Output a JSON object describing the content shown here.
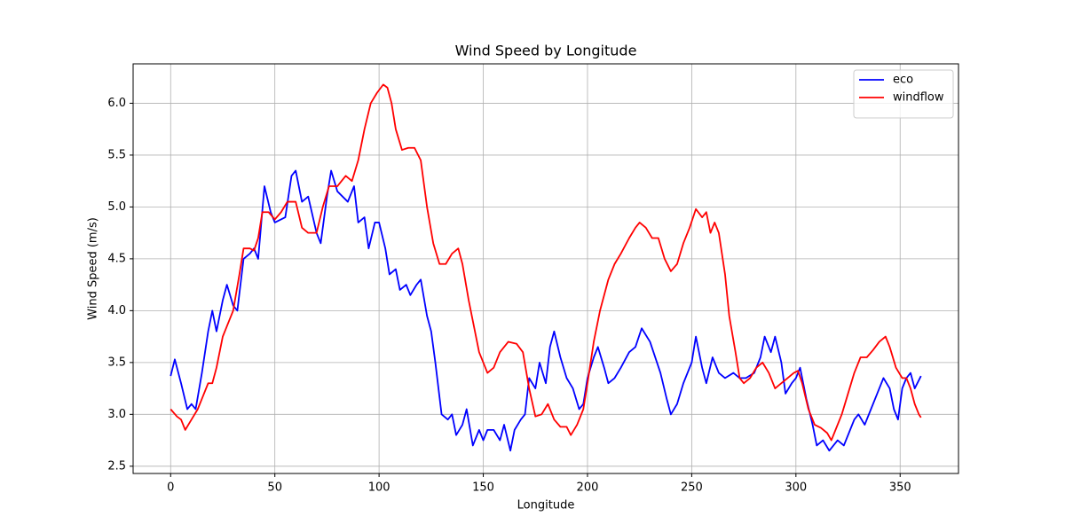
{
  "chart_data": {
    "type": "line",
    "title": "Wind Speed by Longitude",
    "x_label": "Longitude",
    "y_label": "Wind Speed (m/s)",
    "xlim": [
      -18,
      378
    ],
    "ylim": [
      2.43,
      6.38
    ],
    "xticks": [
      0,
      50,
      100,
      150,
      200,
      250,
      300,
      350
    ],
    "yticks": [
      2.5,
      {
        "value": 3,
        "label": "3.0"
      },
      3.5,
      {
        "value": 4,
        "label": "4.0"
      },
      4.5,
      {
        "value": 5,
        "label": "5.0"
      },
      5.5,
      {
        "value": 6,
        "label": "6.0"
      }
    ],
    "grid": true,
    "legend": "upper right",
    "series": [
      {
        "name": "eco",
        "color": "#0000ff",
        "x": [
          0,
          2,
          5,
          8,
          10,
          12,
          15,
          18,
          20,
          22,
          25,
          27,
          30,
          32,
          35,
          38,
          40,
          42,
          45,
          48,
          50,
          55,
          58,
          60,
          63,
          66,
          70,
          72,
          75,
          77,
          80,
          85,
          88,
          90,
          93,
          95,
          98,
          100,
          103,
          105,
          108,
          110,
          113,
          115,
          118,
          120,
          123,
          125,
          127,
          130,
          133,
          135,
          137,
          140,
          142,
          145,
          148,
          150,
          152,
          155,
          158,
          160,
          163,
          165,
          168,
          170,
          172,
          175,
          177,
          180,
          182,
          184,
          187,
          190,
          193,
          196,
          198,
          200,
          203,
          205,
          208,
          210,
          213,
          216,
          220,
          223,
          226,
          230,
          235,
          238,
          240,
          243,
          246,
          250,
          252,
          255,
          257,
          260,
          263,
          266,
          270,
          273,
          276,
          280,
          283,
          285,
          288,
          290,
          293,
          295,
          298,
          300,
          302,
          305,
          308,
          310,
          313,
          316,
          318,
          320,
          323,
          326,
          328,
          330,
          333,
          336,
          339,
          342,
          345,
          347,
          349,
          351,
          353,
          355,
          357,
          360
        ],
        "values": [
          3.37,
          3.53,
          3.3,
          3.05,
          3.1,
          3.05,
          3.4,
          3.8,
          4.0,
          3.8,
          4.1,
          4.25,
          4.05,
          4.0,
          4.5,
          4.55,
          4.6,
          4.5,
          5.2,
          4.95,
          4.85,
          4.9,
          5.3,
          5.35,
          5.05,
          5.1,
          4.75,
          4.65,
          5.1,
          5.35,
          5.15,
          5.05,
          5.2,
          4.85,
          4.9,
          4.6,
          4.85,
          4.85,
          4.6,
          4.35,
          4.4,
          4.2,
          4.25,
          4.15,
          4.25,
          4.3,
          3.95,
          3.8,
          3.5,
          3.0,
          2.95,
          3.0,
          2.8,
          2.9,
          3.05,
          2.7,
          2.85,
          2.75,
          2.85,
          2.85,
          2.75,
          2.9,
          2.65,
          2.85,
          2.95,
          3.0,
          3.35,
          3.25,
          3.5,
          3.3,
          3.65,
          3.8,
          3.55,
          3.35,
          3.25,
          3.05,
          3.1,
          3.35,
          3.55,
          3.65,
          3.45,
          3.3,
          3.35,
          3.45,
          3.6,
          3.65,
          3.83,
          3.7,
          3.4,
          3.15,
          3.0,
          3.1,
          3.3,
          3.5,
          3.75,
          3.45,
          3.3,
          3.55,
          3.4,
          3.35,
          3.4,
          3.35,
          3.35,
          3.4,
          3.55,
          3.75,
          3.6,
          3.75,
          3.5,
          3.2,
          3.3,
          3.35,
          3.45,
          3.15,
          2.9,
          2.7,
          2.75,
          2.65,
          2.7,
          2.75,
          2.7,
          2.85,
          2.95,
          3.0,
          2.9,
          3.05,
          3.2,
          3.35,
          3.25,
          3.05,
          2.95,
          3.25,
          3.35,
          3.4,
          3.25,
          3.37
        ]
      },
      {
        "name": "windflow",
        "color": "#ff0000",
        "x": [
          0,
          3,
          5,
          7,
          10,
          13,
          15,
          18,
          20,
          22,
          25,
          28,
          30,
          33,
          35,
          38,
          40,
          42,
          44,
          47,
          50,
          53,
          56,
          60,
          63,
          66,
          70,
          73,
          76,
          80,
          84,
          87,
          90,
          93,
          96,
          99,
          102,
          104,
          106,
          108,
          111,
          114,
          117,
          120,
          123,
          126,
          129,
          132,
          135,
          138,
          140,
          143,
          145,
          148,
          152,
          155,
          158,
          162,
          166,
          169,
          172,
          175,
          178,
          181,
          184,
          187,
          190,
          192,
          195,
          198,
          200,
          203,
          206,
          210,
          213,
          216,
          220,
          223,
          225,
          228,
          231,
          234,
          237,
          240,
          243,
          246,
          249,
          252,
          255,
          257,
          259,
          261,
          263,
          266,
          268,
          271,
          273,
          275,
          278,
          281,
          284,
          287,
          290,
          293,
          296,
          299,
          301,
          303,
          306,
          309,
          312,
          315,
          317,
          319,
          322,
          325,
          328,
          331,
          334,
          337,
          340,
          343,
          345,
          348,
          351,
          353,
          355,
          357,
          359,
          360
        ],
        "values": [
          3.05,
          2.98,
          2.95,
          2.85,
          2.95,
          3.05,
          3.15,
          3.3,
          3.3,
          3.45,
          3.75,
          3.9,
          4.0,
          4.35,
          4.6,
          4.6,
          4.58,
          4.7,
          4.95,
          4.95,
          4.88,
          4.95,
          5.05,
          5.05,
          4.8,
          4.75,
          4.75,
          5.0,
          5.2,
          5.2,
          5.3,
          5.25,
          5.45,
          5.75,
          6.0,
          6.1,
          6.18,
          6.15,
          6.0,
          5.75,
          5.55,
          5.57,
          5.57,
          5.45,
          5.0,
          4.65,
          4.45,
          4.45,
          4.55,
          4.6,
          4.45,
          4.1,
          3.9,
          3.6,
          3.4,
          3.45,
          3.6,
          3.7,
          3.68,
          3.6,
          3.25,
          2.98,
          3.0,
          3.1,
          2.95,
          2.88,
          2.88,
          2.8,
          2.9,
          3.05,
          3.3,
          3.7,
          4.0,
          4.3,
          4.45,
          4.55,
          4.7,
          4.8,
          4.85,
          4.8,
          4.7,
          4.7,
          4.5,
          4.38,
          4.45,
          4.65,
          4.8,
          4.98,
          4.9,
          4.95,
          4.75,
          4.85,
          4.75,
          4.35,
          3.95,
          3.6,
          3.35,
          3.3,
          3.35,
          3.45,
          3.5,
          3.4,
          3.25,
          3.3,
          3.35,
          3.4,
          3.42,
          3.3,
          3.05,
          2.9,
          2.87,
          2.82,
          2.75,
          2.85,
          3.0,
          3.2,
          3.4,
          3.55,
          3.55,
          3.62,
          3.7,
          3.75,
          3.65,
          3.45,
          3.35,
          3.35,
          3.25,
          3.1,
          3.0,
          2.97
        ]
      }
    ]
  }
}
